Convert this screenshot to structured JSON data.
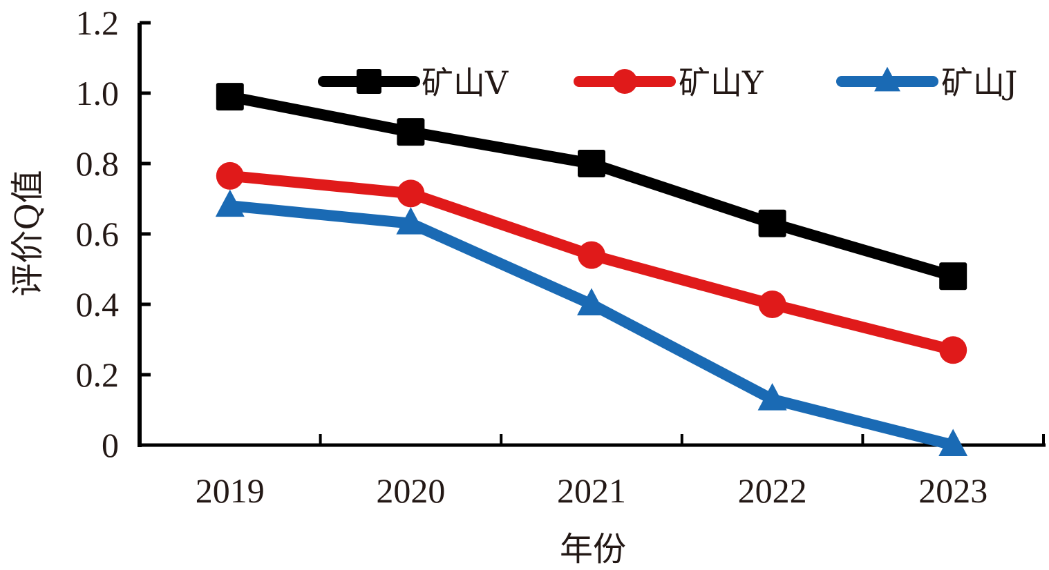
{
  "chart_data": {
    "type": "line",
    "title": "",
    "xlabel": "年份",
    "ylabel": "评价Q值",
    "categories": [
      "2019",
      "2020",
      "2021",
      "2022",
      "2023"
    ],
    "ylim": [
      0,
      1.2
    ],
    "yticks": [
      "0",
      "0.2",
      "0.4",
      "0.6",
      "0.8",
      "1.0",
      "1.2"
    ],
    "ytick_values": [
      0,
      0.2,
      0.4,
      0.6,
      0.8,
      1.0,
      1.2
    ],
    "grid": false,
    "legend_position": "top",
    "series": [
      {
        "name": "矿山V",
        "color": "#000000",
        "marker": "square",
        "values": [
          0.99,
          0.89,
          0.8,
          0.63,
          0.48
        ]
      },
      {
        "name": "矿山Y",
        "color": "#e01a1a",
        "marker": "circle",
        "values": [
          0.765,
          0.715,
          0.54,
          0.4,
          0.27
        ]
      },
      {
        "name": "矿山J",
        "color": "#1a6ab4",
        "marker": "triangle",
        "values": [
          0.68,
          0.63,
          0.4,
          0.13,
          0.0
        ]
      }
    ]
  }
}
